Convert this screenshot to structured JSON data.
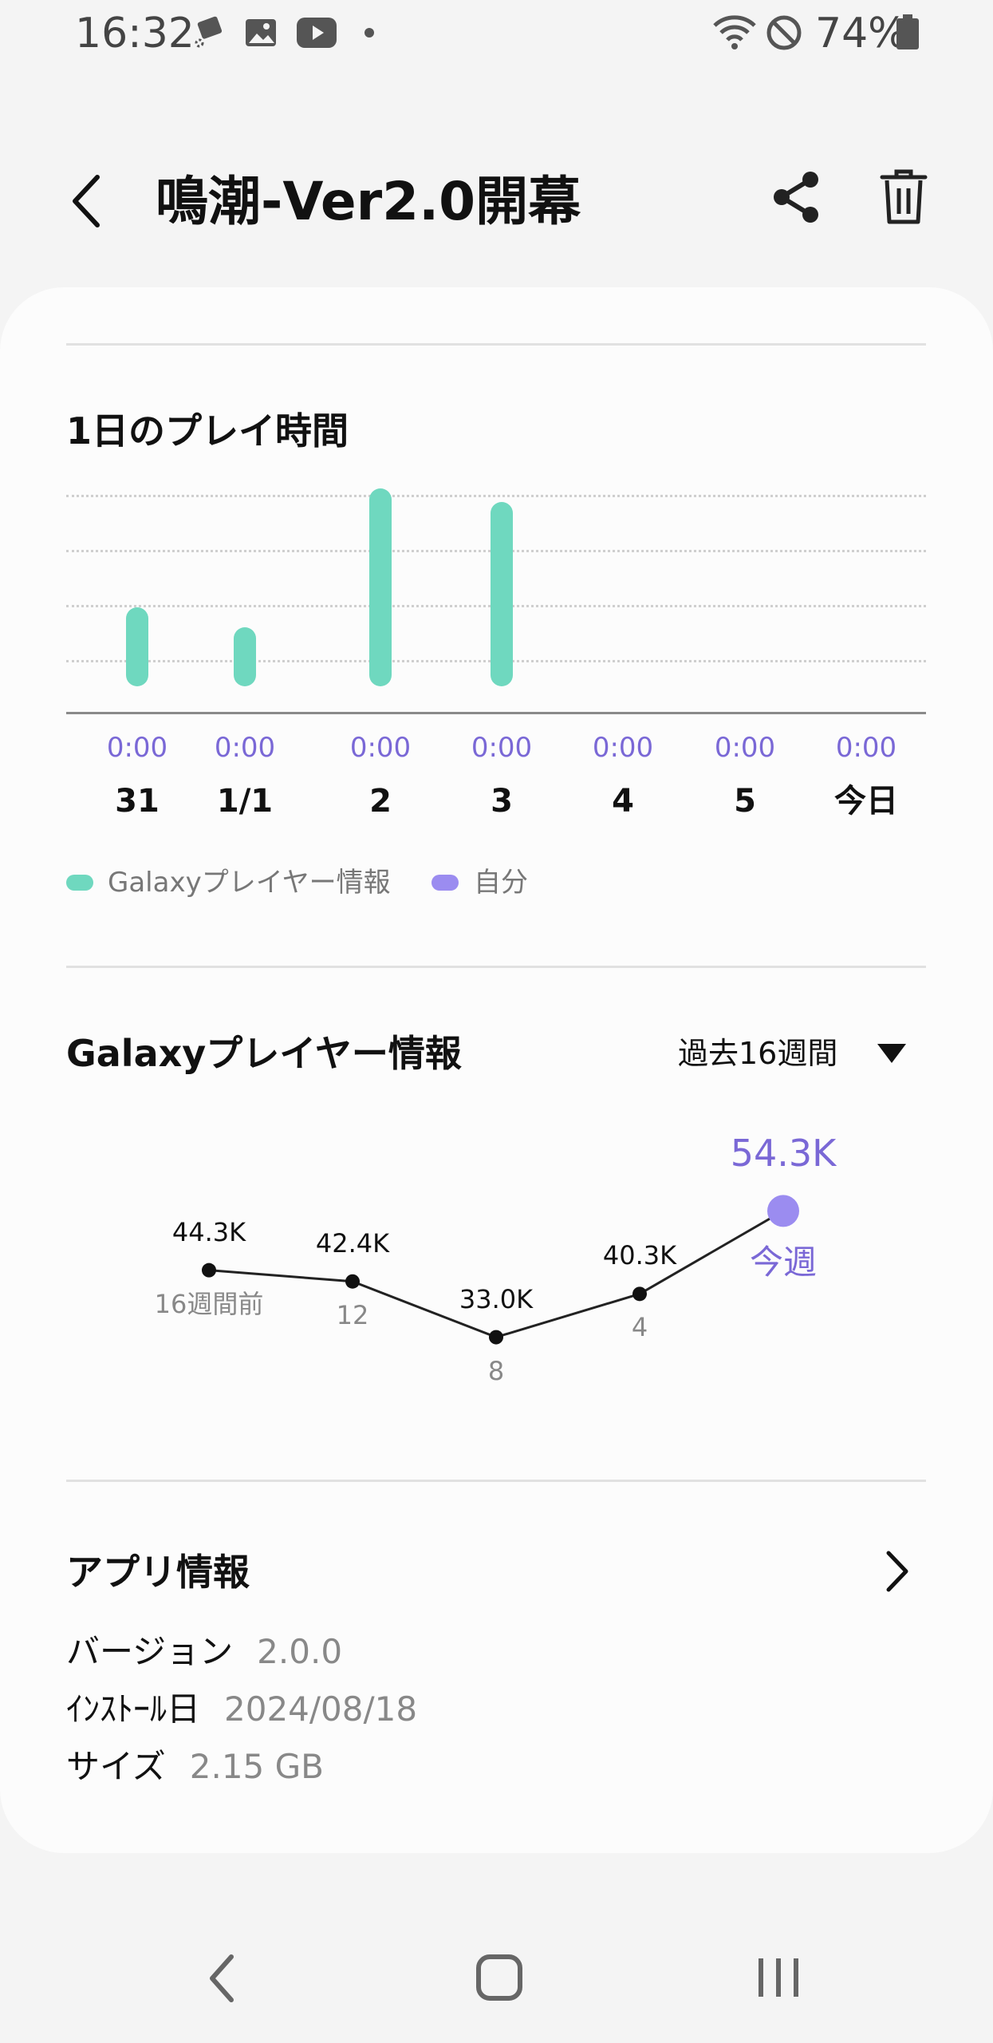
{
  "status_bar": {
    "time": "16:32",
    "battery": "74%",
    "icons": [
      "notification-icon",
      "gallery-icon",
      "youtube-icon",
      "dot-icon",
      "wifi-icon",
      "do-not-disturb-icon",
      "battery-icon"
    ]
  },
  "header": {
    "title": "鳴潮-Ver2.0開幕",
    "icons": [
      "back-arrow-icon",
      "share-icon",
      "trash-icon"
    ]
  },
  "daily_play": {
    "title": "1日のプレイ時間",
    "legend": [
      {
        "label": "Galaxyプレイヤー情報",
        "color": "#6fd8bf"
      },
      {
        "label": "自分",
        "color": "#9b8cf0"
      }
    ]
  },
  "chart_data": [
    {
      "type": "bar",
      "title": "1日のプレイ時間",
      "categories": [
        "31",
        "1/1",
        "2",
        "3",
        "4",
        "5",
        "今日"
      ],
      "series": [
        {
          "name": "Galaxyプレイヤー情報",
          "values": [
            0.4,
            0.3,
            1.0,
            0.93,
            0,
            0,
            0
          ]
        },
        {
          "name": "自分",
          "values": [
            0,
            0,
            0,
            0,
            0,
            0,
            0
          ]
        }
      ],
      "time_labels": [
        "0:00",
        "0:00",
        "0:00",
        "0:00",
        "0:00",
        "0:00",
        "0:00"
      ],
      "ylim": [
        0,
        1
      ],
      "grid": true,
      "legend": "bottom-left"
    },
    {
      "type": "line",
      "title": "Galaxyプレイヤー情報",
      "period": "過去16週間",
      "categories": [
        "16週間前",
        "12",
        "8",
        "4",
        "今週"
      ],
      "value_labels": [
        "44.3K",
        "42.4K",
        "33.0K",
        "40.3K",
        "54.3K"
      ],
      "values": [
        44.3,
        42.4,
        33.0,
        40.3,
        54.3
      ],
      "ylim": [
        25,
        60
      ],
      "highlight_color": "#9b8cf0",
      "grid": false
    }
  ],
  "galaxy_info": {
    "title": "Galaxyプレイヤー情報",
    "period_select": "過去16週間"
  },
  "app_info": {
    "title": "アプリ情報",
    "rows": [
      {
        "key": "バージョン",
        "value": "2.0.0"
      },
      {
        "key": "ｲﾝｽﾄｰﾙ日",
        "value": "2024/08/18"
      },
      {
        "key": "サイズ",
        "value": "2.15 GB"
      }
    ]
  },
  "nav_bar": {
    "icons": [
      "nav-back-icon",
      "nav-home-icon",
      "nav-recents-icon"
    ]
  },
  "colors": {
    "accent": "#7a68d6",
    "bar": "#6fd8bf",
    "self": "#9b8cf0"
  }
}
